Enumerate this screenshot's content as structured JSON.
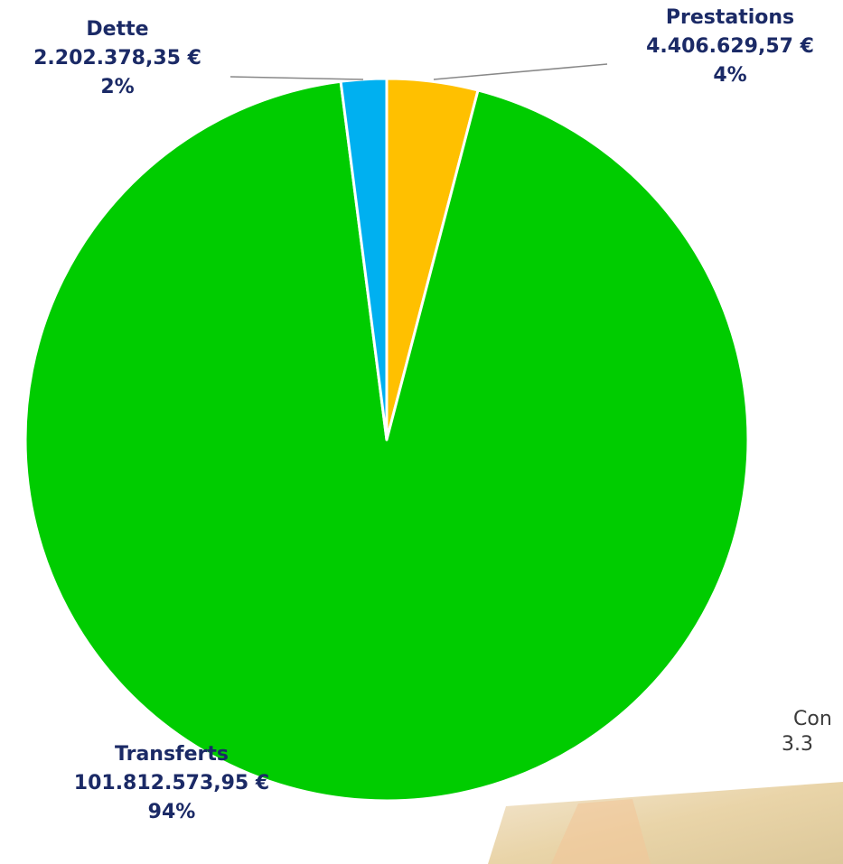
{
  "chart_data": {
    "type": "pie",
    "categories": [
      "Prestations",
      "Transferts",
      "Dette"
    ],
    "values": [
      4406629.57,
      101812573.95,
      2202378.35
    ],
    "value_labels": [
      "4.406.629,57 €",
      "101.812.573,95 €",
      "2.202.378,35 €"
    ],
    "percents": [
      4,
      94,
      2
    ],
    "percent_labels": [
      "4%",
      "94%",
      "2%"
    ],
    "colors": [
      "#ffc000",
      "#00cc00",
      "#00b0f0"
    ],
    "annotations": [
      "Con",
      "3.3"
    ]
  }
}
